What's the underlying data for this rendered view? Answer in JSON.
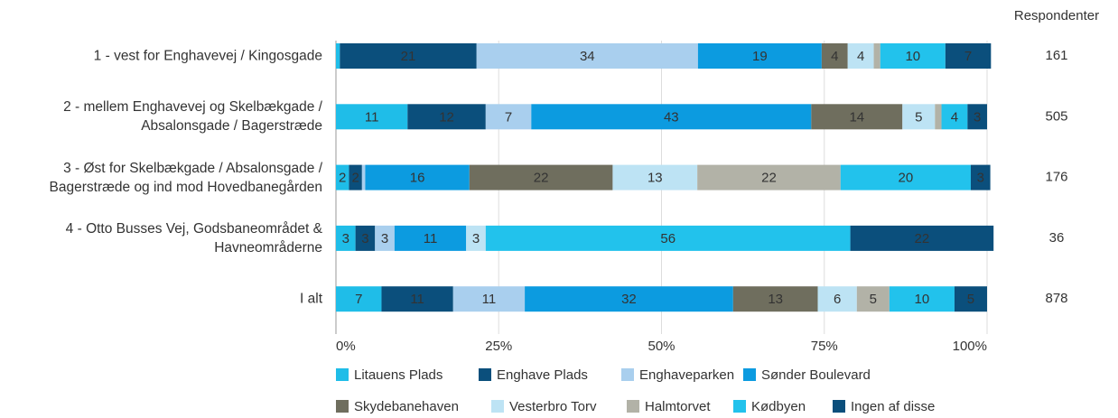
{
  "chart_data": {
    "type": "stacked_barh",
    "categories": [
      "1 - vest for Enghavevej / Kingosgade",
      "2 - mellem Enghavevej og Skelbækgade /\nAbsalonsgade / Bagerstræde",
      "3 - Øst for Skelbækgade / Absalonsgade /\nBagerstræde og ind mod Hovedbanegården",
      "4 - Otto Busses Vej, Godsbaneområdet &\nHavneområderne",
      "I alt"
    ],
    "series": [
      {
        "name": "Litauens Plads",
        "color": "#1fbde8",
        "values": [
          0.6,
          11,
          2,
          3,
          7
        ],
        "value_labels": [
          null,
          "11",
          "2",
          "3",
          "7"
        ]
      },
      {
        "name": "Enghave Plads",
        "color": "#0b4f7c",
        "values": [
          21,
          12,
          2,
          3,
          11
        ],
        "value_labels": [
          "21",
          "12",
          "2",
          "3",
          "11"
        ]
      },
      {
        "name": "Enghaveparken",
        "color": "#a9cfee",
        "values": [
          34,
          7,
          0.5,
          3,
          11
        ],
        "value_labels": [
          "34",
          "7",
          null,
          "3",
          "11"
        ]
      },
      {
        "name": "Sønder Boulevard",
        "color": "#0c9be0",
        "values": [
          19,
          43,
          16,
          11,
          32
        ],
        "value_labels": [
          "19",
          "43",
          "16",
          "11",
          "32"
        ]
      },
      {
        "name": "Skydebanehaven",
        "color": "#6f6e5e",
        "values": [
          4,
          14,
          22,
          0,
          13
        ],
        "value_labels": [
          "4",
          "14",
          "22",
          null,
          "13"
        ]
      },
      {
        "name": "Vesterbro Torv",
        "color": "#bde3f4",
        "values": [
          4,
          5,
          13,
          3,
          6
        ],
        "value_labels": [
          "4",
          "5",
          "13",
          "3",
          "6"
        ]
      },
      {
        "name": "Halmtorvet",
        "color": "#b2b2a7",
        "values": [
          1,
          1,
          22,
          0,
          5
        ],
        "value_labels": [
          null,
          null,
          "22",
          null,
          "5"
        ]
      },
      {
        "name": "Kødbyen",
        "color": "#22c2ec",
        "values": [
          10,
          4,
          20,
          56,
          10
        ],
        "value_labels": [
          "10",
          "4",
          "20",
          "56",
          "10"
        ]
      },
      {
        "name": "Ingen af disse",
        "color": "#0b4f7c",
        "values": [
          7,
          3,
          3,
          22,
          5
        ],
        "value_labels": [
          "7",
          "3",
          "3",
          "22",
          "5"
        ]
      }
    ],
    "xlim": [
      0,
      100
    ],
    "xticks": [
      {
        "value": 0,
        "label": "0%"
      },
      {
        "value": 25,
        "label": "25%"
      },
      {
        "value": 50,
        "label": "50%"
      },
      {
        "value": 75,
        "label": "75%"
      },
      {
        "value": 100,
        "label": "100%"
      }
    ],
    "grid": true,
    "legend": "bottom",
    "respondents_header": "Respondenter",
    "respondents": [
      "161",
      "505",
      "176",
      "36",
      "878"
    ]
  }
}
